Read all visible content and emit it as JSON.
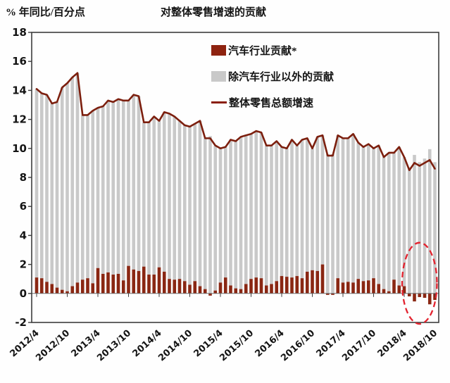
{
  "header": {
    "y_axis_label": "% 年同比/百分点",
    "title": "对整体零售增速的贡献"
  },
  "legend": {
    "auto": {
      "label": "汽车行业贡献*",
      "color": "#8e2310"
    },
    "nonauto": {
      "label": "除汽车行业以外的贡献",
      "color": "#c9c9c9"
    },
    "total": {
      "label": "整体零售总额增速",
      "color": "#8a1f0e"
    }
  },
  "colors": {
    "auto_bar": "#8a2713",
    "nonauto_bar": "#c9c9c9",
    "total_line": "#7c1f0e",
    "axis": "#3d3d3d",
    "zero_line": "#6f6f6f",
    "tick_text": "#141414",
    "highlight_ellipse": "#e3232f"
  },
  "chart_data": {
    "type": "bar",
    "subtype": "stacked-bars-with-line",
    "title": "对整体零售增速的贡献",
    "ylabel": "% 年同比/百分点",
    "ylim": [
      -2,
      18
    ],
    "ytick_step": 2,
    "grid": false,
    "legend_position": "inside-top-center",
    "x": [
      "2012/4",
      "2012/5",
      "2012/6",
      "2012/7",
      "2012/8",
      "2012/9",
      "2012/10",
      "2012/11",
      "2012/12",
      "2013/1",
      "2013/2",
      "2013/3",
      "2013/4",
      "2013/5",
      "2013/6",
      "2013/7",
      "2013/8",
      "2013/9",
      "2013/10",
      "2013/11",
      "2013/12",
      "2014/1",
      "2014/2",
      "2014/3",
      "2014/4",
      "2014/5",
      "2014/6",
      "2014/7",
      "2014/8",
      "2014/9",
      "2014/10",
      "2014/11",
      "2014/12",
      "2015/1",
      "2015/2",
      "2015/3",
      "2015/4",
      "2015/5",
      "2015/6",
      "2015/7",
      "2015/8",
      "2015/9",
      "2015/10",
      "2015/11",
      "2015/12",
      "2016/1",
      "2016/2",
      "2016/3",
      "2016/4",
      "2016/5",
      "2016/6",
      "2016/7",
      "2016/8",
      "2016/9",
      "2016/10",
      "2016/11",
      "2016/12",
      "2017/1",
      "2017/2",
      "2017/3",
      "2017/4",
      "2017/5",
      "2017/6",
      "2017/7",
      "2017/8",
      "2017/9",
      "2017/10",
      "2017/11",
      "2017/12",
      "2018/1",
      "2018/2",
      "2018/3",
      "2018/4",
      "2018/5",
      "2018/6",
      "2018/7",
      "2018/8",
      "2018/9",
      "2018/10"
    ],
    "xticks": [
      "2012/4",
      "2012/10",
      "2013/4",
      "2013/10",
      "2014/4",
      "2014/10",
      "2015/4",
      "2015/10",
      "2016/4",
      "2016/10",
      "2017/4",
      "2017/10",
      "2018/4",
      "2018/10"
    ],
    "series": [
      {
        "name": "汽车行业贡献*",
        "type": "bar",
        "stack": 0,
        "color": "#8a2713",
        "values": [
          1.1,
          1.05,
          0.8,
          0.65,
          0.4,
          0.25,
          0.15,
          0.5,
          0.75,
          0.95,
          1.05,
          0.7,
          1.75,
          1.35,
          1.45,
          1.3,
          1.35,
          0.9,
          1.9,
          1.65,
          1.55,
          1.85,
          1.3,
          1.3,
          1.8,
          1.5,
          1.0,
          0.95,
          1.0,
          0.85,
          0.6,
          0.85,
          0.5,
          0.3,
          -0.15,
          0.2,
          0.75,
          1.1,
          0.55,
          0.35,
          0.3,
          0.65,
          1.0,
          1.1,
          1.05,
          0.55,
          0.65,
          0.85,
          1.2,
          1.15,
          1.1,
          1.2,
          1.05,
          1.5,
          1.6,
          1.55,
          2.0,
          -0.1,
          -0.1,
          1.05,
          0.75,
          0.8,
          0.75,
          1.0,
          0.85,
          0.9,
          1.05,
          0.65,
          0.3,
          0.15,
          0.95,
          0.55,
          0.5,
          -0.2,
          -0.55,
          -0.25,
          -0.3,
          -0.75,
          -0.45
        ]
      },
      {
        "name": "除汽车行业以外的贡献",
        "type": "bar",
        "stack": 1,
        "color": "#c9c9c9",
        "values": [
          13.0,
          12.75,
          12.9,
          12.45,
          12.8,
          13.95,
          14.35,
          14.4,
          14.45,
          11.35,
          11.25,
          11.9,
          11.05,
          11.55,
          11.85,
          11.9,
          12.05,
          12.4,
          11.4,
          12.05,
          12.05,
          9.95,
          10.5,
          10.9,
          10.1,
          11.0,
          11.4,
          11.25,
          10.9,
          10.75,
          10.9,
          10.85,
          11.4,
          10.4,
          10.85,
          10.0,
          9.25,
          9.0,
          10.05,
          10.15,
          10.5,
          10.25,
          10.0,
          10.1,
          10.05,
          9.65,
          9.55,
          9.65,
          8.9,
          8.85,
          9.5,
          9.0,
          9.55,
          9.2,
          8.4,
          9.25,
          8.9,
          9.6,
          9.6,
          9.85,
          9.95,
          9.9,
          10.25,
          9.4,
          9.25,
          9.4,
          8.95,
          9.55,
          9.1,
          9.55,
          8.75,
          9.55,
          8.9,
          8.7,
          9.55,
          9.05,
          9.3,
          9.95,
          9.05
        ]
      },
      {
        "name": "整体零售总额增速",
        "type": "line",
        "color": "#7c1f0e",
        "values": [
          14.1,
          13.8,
          13.7,
          13.1,
          13.2,
          14.2,
          14.5,
          14.9,
          15.2,
          12.3,
          12.3,
          12.6,
          12.8,
          12.9,
          13.3,
          13.2,
          13.4,
          13.3,
          13.3,
          13.7,
          13.6,
          11.8,
          11.8,
          12.2,
          11.9,
          12.5,
          12.4,
          12.2,
          11.9,
          11.6,
          11.5,
          11.7,
          11.9,
          10.7,
          10.7,
          10.2,
          10.0,
          10.1,
          10.6,
          10.5,
          10.8,
          10.9,
          11.0,
          11.2,
          11.1,
          10.2,
          10.2,
          10.5,
          10.1,
          10.0,
          10.6,
          10.2,
          10.6,
          10.7,
          10.0,
          10.8,
          10.9,
          9.5,
          9.5,
          10.9,
          10.7,
          10.7,
          11.0,
          10.4,
          10.1,
          10.3,
          10.0,
          10.2,
          9.4,
          9.7,
          9.7,
          10.1,
          9.4,
          8.5,
          9.0,
          8.8,
          9.0,
          9.2,
          8.6
        ]
      }
    ],
    "annotations": [
      {
        "type": "ellipse",
        "style": "dashed",
        "color": "#e3232f",
        "x_range": [
          "2018/4",
          "2018/10"
        ],
        "y_center": 0.7,
        "y_radius": 2.8
      }
    ]
  }
}
